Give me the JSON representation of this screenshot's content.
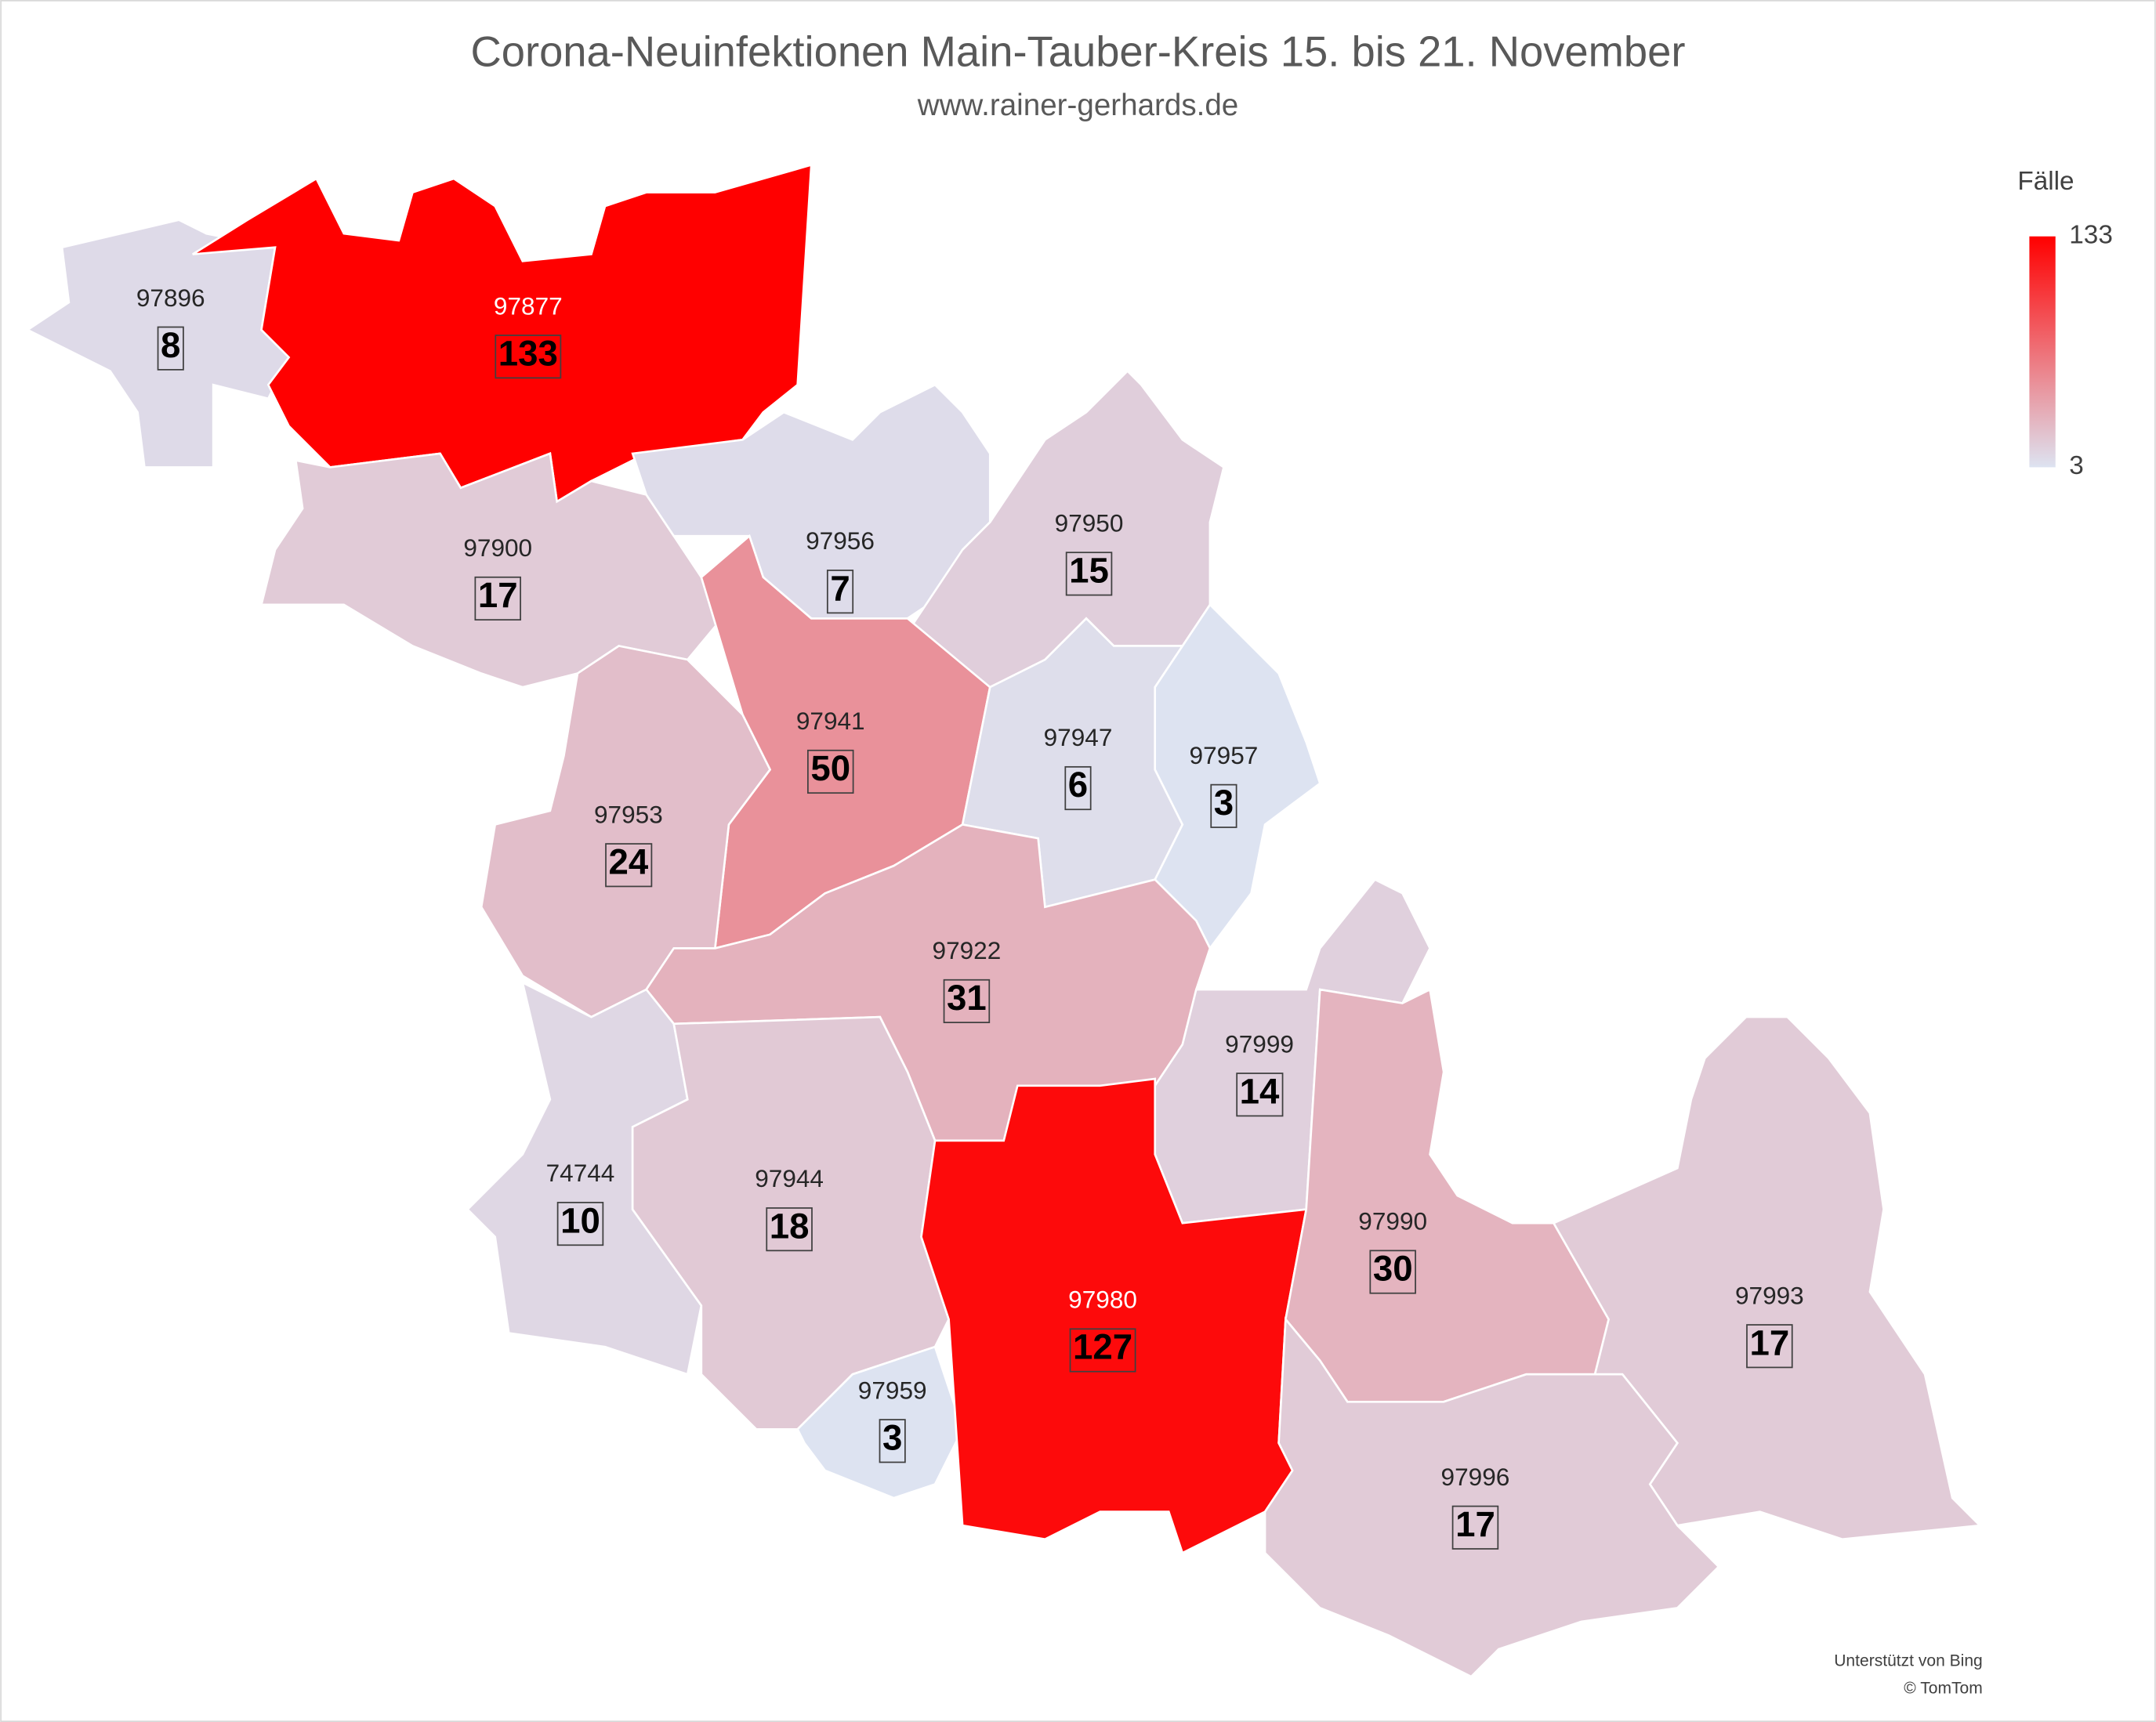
{
  "chart_data": {
    "type": "choropleth",
    "title": "Corona-Neuinfektionen Main-Tauber-Kreis 15. bis 21. November",
    "subtitle": "www.rainer-gerhards.de",
    "categories": [
      "97896",
      "97877",
      "97900",
      "97956",
      "97950",
      "97941",
      "97947",
      "97957",
      "97953",
      "97922",
      "74744",
      "97944",
      "97959",
      "97999",
      "97980",
      "97990",
      "97993",
      "97996"
    ],
    "values": [
      8,
      133,
      17,
      7,
      15,
      50,
      6,
      3,
      24,
      31,
      10,
      18,
      3,
      14,
      127,
      30,
      17,
      17
    ],
    "color_min": "#dde3f1",
    "color_max": "#ff0000",
    "colorbar": {
      "title": "Fälle",
      "lim": [
        3,
        133
      ],
      "ticks": [
        3,
        133
      ]
    },
    "credits": [
      "Unterstützt von Bing",
      "© TomTom"
    ]
  }
}
